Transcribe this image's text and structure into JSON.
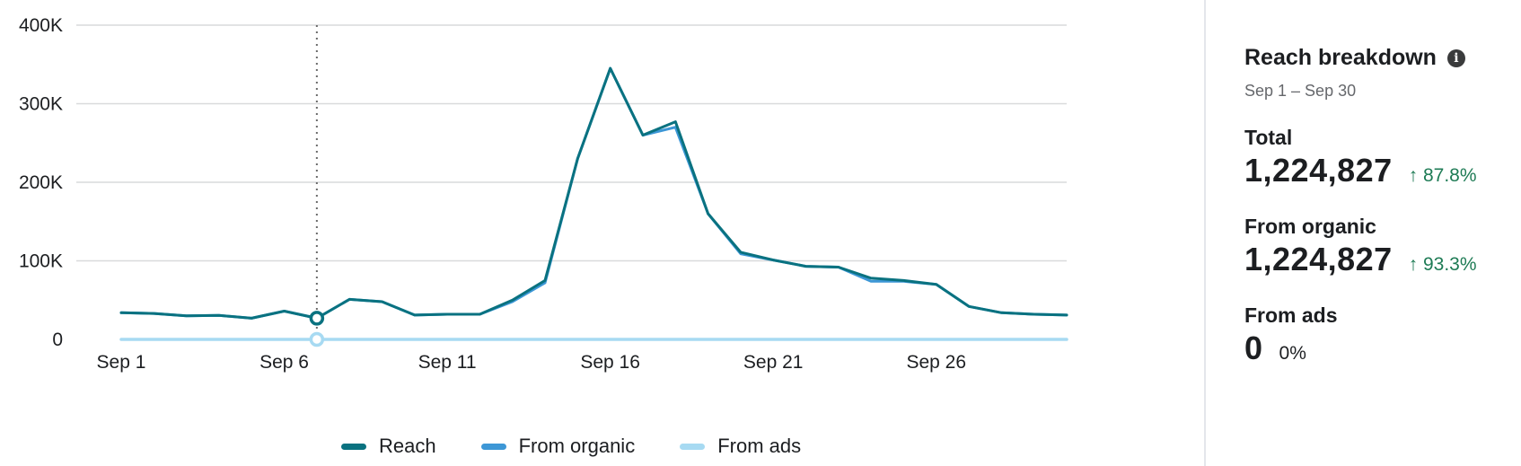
{
  "chart_data": {
    "type": "line",
    "x": [
      "Sep 1",
      "Sep 2",
      "Sep 3",
      "Sep 4",
      "Sep 5",
      "Sep 6",
      "Sep 7",
      "Sep 8",
      "Sep 9",
      "Sep 10",
      "Sep 11",
      "Sep 12",
      "Sep 13",
      "Sep 14",
      "Sep 15",
      "Sep 16",
      "Sep 17",
      "Sep 18",
      "Sep 19",
      "Sep 20",
      "Sep 21",
      "Sep 22",
      "Sep 23",
      "Sep 24",
      "Sep 25",
      "Sep 26",
      "Sep 27",
      "Sep 28",
      "Sep 29",
      "Sep 30"
    ],
    "xticks": [
      "Sep 1",
      "Sep 6",
      "Sep 11",
      "Sep 16",
      "Sep 21",
      "Sep 26"
    ],
    "yticks": [
      "0",
      "100K",
      "200K",
      "300K",
      "400K"
    ],
    "ylim": [
      0,
      400000
    ],
    "grid": true,
    "legend_position": "bottom",
    "highlight_index": 6,
    "series": [
      {
        "name": "Reach",
        "color": "#0a7280",
        "values": [
          34000,
          33000,
          30000,
          30500,
          27000,
          36000,
          27000,
          51000,
          48000,
          31000,
          32000,
          32000,
          50000,
          75000,
          230000,
          345000,
          260000,
          277000,
          160000,
          111000,
          101000,
          93000,
          92000,
          78000,
          75000,
          70000,
          42000,
          34000,
          32000,
          31000
        ]
      },
      {
        "name": "From organic",
        "color": "#3d97d6",
        "values": [
          34000,
          33000,
          30000,
          30500,
          27000,
          36000,
          27000,
          51000,
          48000,
          31000,
          32000,
          32000,
          48000,
          72000,
          230000,
          345000,
          260000,
          270000,
          160000,
          109000,
          101000,
          93000,
          92000,
          74000,
          74000,
          70000,
          42000,
          34000,
          32000,
          31000
        ]
      },
      {
        "name": "From ads",
        "color": "#a7daf2",
        "values": [
          0,
          0,
          0,
          0,
          0,
          0,
          0,
          0,
          0,
          0,
          0,
          0,
          0,
          0,
          0,
          0,
          0,
          0,
          0,
          0,
          0,
          0,
          0,
          0,
          0,
          0,
          0,
          0,
          0,
          0
        ]
      }
    ]
  },
  "panel": {
    "title": "Reach breakdown",
    "date_range": "Sep 1 – Sep 30",
    "info_icon": "info-icon",
    "metrics": [
      {
        "label": "Total",
        "value": "1,224,827",
        "change": "↑ 87.8%"
      },
      {
        "label": "From organic",
        "value": "1,224,827",
        "change": "↑ 93.3%"
      },
      {
        "label": "From ads",
        "value": "0",
        "change": "0%"
      }
    ]
  },
  "colors": {
    "positive_change": "#1e7b55",
    "grid": "#d9dadc",
    "hover_line": "#6b6b6b"
  }
}
